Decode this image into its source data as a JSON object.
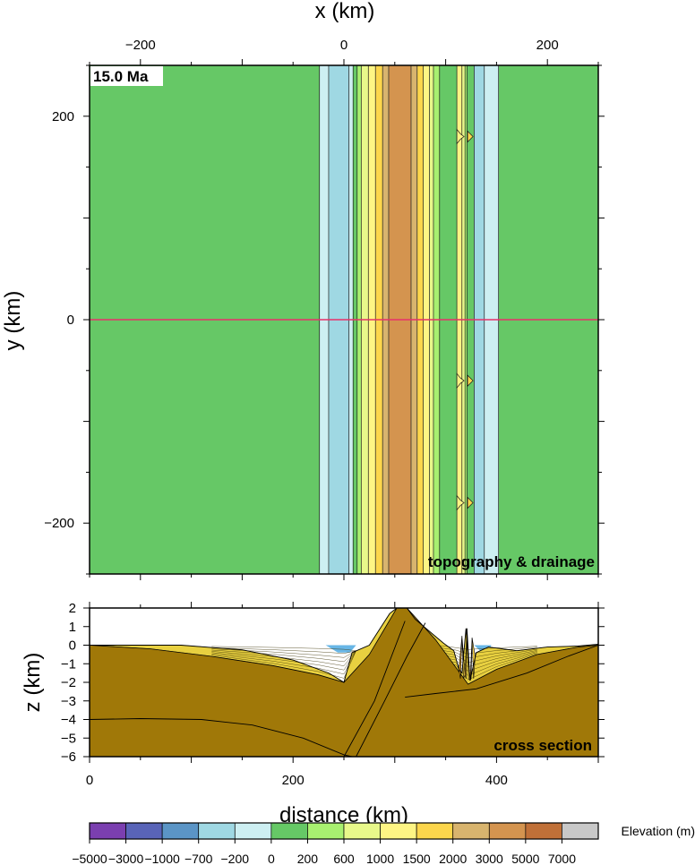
{
  "colors": {
    "lowland_green": "#66c866",
    "mountain_brown": "#d4944f",
    "section_brown": "#a07808",
    "water_blue": "#68b6e6",
    "profile_line": "#e8306a"
  },
  "chart_data": [
    {
      "type": "heatmap",
      "title": "topography & drainage",
      "time_label": "15.0 Ma",
      "xlabel": "x (km)",
      "ylabel": "y (km)",
      "xlim": [
        -250,
        250
      ],
      "ylim": [
        -250,
        250
      ],
      "xticks": [
        -200,
        0,
        200
      ],
      "yticks": [
        200,
        0,
        -200
      ],
      "xtick_labels": [
        "−200",
        "0",
        "200"
      ],
      "ytick_labels": [
        "200",
        "0",
        "−200"
      ],
      "profile_y": 0,
      "bands": [
        {
          "x0": -250,
          "x1": -24,
          "color": "#66c866"
        },
        {
          "x0": -24,
          "x1": -15,
          "color": "#cdeff2"
        },
        {
          "x0": -15,
          "x1": 5,
          "color": "#9fd8e3"
        },
        {
          "x0": 5,
          "x1": 9,
          "color": "#cdeff2"
        },
        {
          "x0": 9,
          "x1": 13,
          "color": "#66c866"
        },
        {
          "x0": 13,
          "x1": 17,
          "color": "#a8f070"
        },
        {
          "x0": 17,
          "x1": 24,
          "color": "#e8f88a"
        },
        {
          "x0": 24,
          "x1": 31,
          "color": "#fef584"
        },
        {
          "x0": 31,
          "x1": 38,
          "color": "#fcd64c"
        },
        {
          "x0": 38,
          "x1": 44,
          "color": "#d8b46e"
        },
        {
          "x0": 44,
          "x1": 66,
          "color": "#d4944f"
        },
        {
          "x0": 66,
          "x1": 72,
          "color": "#d8b46e"
        },
        {
          "x0": 72,
          "x1": 78,
          "color": "#fcd64c"
        },
        {
          "x0": 78,
          "x1": 84,
          "color": "#fef584"
        },
        {
          "x0": 84,
          "x1": 88,
          "color": "#e8f88a"
        },
        {
          "x0": 88,
          "x1": 94,
          "color": "#a8f070"
        },
        {
          "x0": 94,
          "x1": 111,
          "color": "#66c866"
        },
        {
          "x0": 111,
          "x1": 116,
          "color": "#fef584"
        },
        {
          "x0": 116,
          "x1": 119,
          "color": "#e8f88a"
        },
        {
          "x0": 119,
          "x1": 121,
          "color": "#a8f070"
        },
        {
          "x0": 121,
          "x1": 128,
          "color": "#66c866"
        },
        {
          "x0": 128,
          "x1": 138,
          "color": "#9fd8e3"
        },
        {
          "x0": 138,
          "x1": 152,
          "color": "#cdeff2"
        },
        {
          "x0": 152,
          "x1": 250,
          "color": "#66c866"
        }
      ],
      "kinks_y": [
        180,
        -60,
        -180
      ],
      "kink_x": 111
    },
    {
      "type": "area",
      "title": "cross section",
      "xlabel": "distance (km)",
      "ylabel": "z (km)",
      "xlim": [
        0,
        500
      ],
      "ylim": [
        -6,
        2
      ],
      "xticks": [
        0,
        200,
        400
      ],
      "yticks": [
        2,
        1,
        0,
        -1,
        -2,
        -3,
        -4,
        -5,
        -6
      ],
      "xtick_labels": [
        "0",
        "200",
        "400"
      ],
      "ytick_labels": [
        "2",
        "1",
        "0",
        "−1",
        "−2",
        "−3",
        "−4",
        "−5",
        "−6"
      ],
      "surface": [
        [
          0,
          0
        ],
        [
          30,
          0
        ],
        [
          90,
          0
        ],
        [
          150,
          -0.25
        ],
        [
          200,
          -0.8
        ],
        [
          235,
          -1.5
        ],
        [
          250,
          -2
        ],
        [
          258,
          -0.4
        ],
        [
          275,
          0
        ],
        [
          295,
          1.7
        ],
        [
          302,
          2
        ],
        [
          312,
          2
        ],
        [
          320,
          1.4
        ],
        [
          335,
          0.7
        ],
        [
          348,
          0.1
        ],
        [
          358,
          -0.3
        ],
        [
          363,
          -1.3
        ],
        [
          366,
          -1.5
        ],
        [
          370,
          0.9
        ],
        [
          374,
          -1.9
        ],
        [
          380,
          -0.4
        ],
        [
          392,
          -0.1
        ],
        [
          420,
          -0.3
        ],
        [
          450,
          -0.1
        ],
        [
          480,
          -0.05
        ],
        [
          500,
          0.05
        ]
      ],
      "basement": [
        [
          0,
          0
        ],
        [
          60,
          -0.2
        ],
        [
          120,
          -0.6
        ],
        [
          180,
          -1.1
        ],
        [
          225,
          -1.6
        ],
        [
          250,
          -2
        ],
        [
          275,
          -0.5
        ],
        [
          302,
          2
        ],
        [
          312,
          2
        ],
        [
          340,
          0.3
        ],
        [
          360,
          -1.2
        ],
        [
          372,
          -2.1
        ],
        [
          400,
          -1.3
        ],
        [
          440,
          -0.5
        ],
        [
          480,
          -0.1
        ],
        [
          500,
          0
        ]
      ],
      "moho": [
        [
          0,
          -4
        ],
        [
          50,
          -3.95
        ],
        [
          110,
          -4
        ],
        [
          160,
          -4.3
        ],
        [
          210,
          -5
        ],
        [
          250,
          -5.9
        ],
        [
          258,
          -6
        ]
      ],
      "moho2": [
        [
          310,
          -2.8
        ],
        [
          340,
          -2.6
        ],
        [
          380,
          -2.35
        ],
        [
          430,
          -1.5
        ],
        [
          470,
          -0.6
        ],
        [
          500,
          0
        ]
      ],
      "fault_outer": [
        [
          262,
          -6
        ],
        [
          290,
          -3
        ],
        [
          312,
          -0.6
        ],
        [
          330,
          1.2
        ]
      ],
      "fault_inner": [
        [
          250,
          -6
        ],
        [
          280,
          -3
        ],
        [
          310,
          1.3
        ]
      ],
      "water_left": [
        [
          232,
          0
        ],
        [
          244,
          -0.4
        ],
        [
          256,
          -0.4
        ],
        [
          262,
          0
        ]
      ],
      "water_right": [
        [
          378,
          0
        ],
        [
          384,
          -0.3
        ],
        [
          392,
          -0.3
        ],
        [
          395,
          0
        ]
      ],
      "peaks": [
        {
          "x": 363,
          "z": -1.3
        },
        {
          "x": 366,
          "z": 0.5
        },
        {
          "x": 369,
          "z": -1.6
        },
        {
          "x": 371,
          "z": 0.9
        },
        {
          "x": 374,
          "z": -1.9
        },
        {
          "x": 376,
          "z": 0.4
        },
        {
          "x": 379,
          "z": -0.6
        }
      ]
    }
  ],
  "colorbar": {
    "label": "Elevation (m)",
    "ticks": [
      "−5000",
      "−3000",
      "−1000",
      "−700",
      "−200",
      "0",
      "200",
      "600",
      "1000",
      "1500",
      "2000",
      "3000",
      "5000",
      "7000"
    ],
    "colors": [
      "#7b3fb0",
      "#5964b8",
      "#5b95c6",
      "#9fd8e3",
      "#cdeff2",
      "#66c866",
      "#a8f070",
      "#e8f88a",
      "#fef584",
      "#fcd64c",
      "#d8b46e",
      "#d4944f",
      "#c07038",
      "#c8c8c8"
    ]
  }
}
